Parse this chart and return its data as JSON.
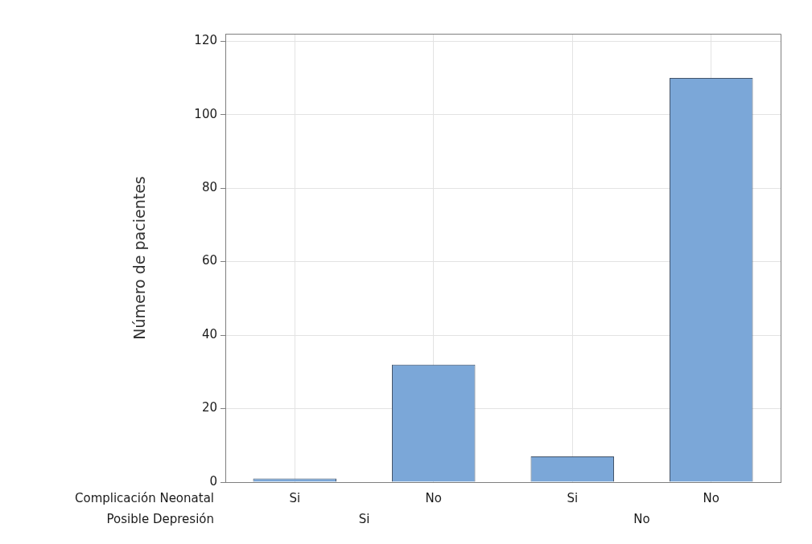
{
  "chart_data": {
    "type": "bar",
    "ylabel": "Número de pacientes",
    "categories": [
      "Si",
      "No",
      "Si",
      "No"
    ],
    "values": [
      1,
      32,
      7,
      110
    ],
    "color": "#7ba7d8",
    "ylim": [
      0,
      122
    ],
    "yticks": [
      0,
      20,
      40,
      60,
      80,
      100,
      120
    ],
    "grid": true,
    "legend": false,
    "annotations": [
      "Complicación Neonatal",
      "Posible Depresión",
      "Si",
      "No"
    ]
  }
}
